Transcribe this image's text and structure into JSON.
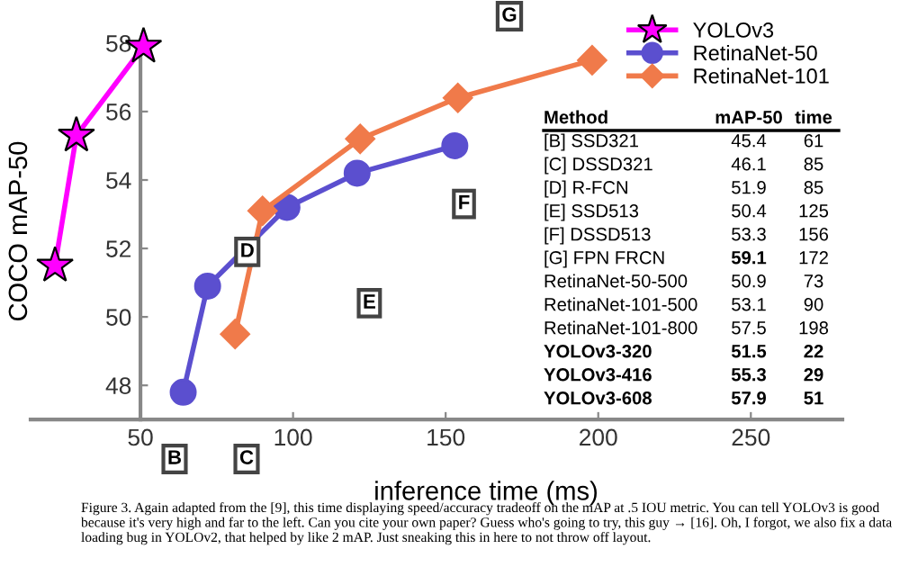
{
  "chart_data": {
    "type": "line",
    "xlabel": "inference time (ms)",
    "ylabel": "COCO mAP-50",
    "xlim": [
      14,
      280
    ],
    "ylim": [
      47,
      58
    ],
    "xticks": [
      50,
      100,
      150,
      200,
      250
    ],
    "yticks": [
      48,
      50,
      52,
      54,
      56,
      58
    ],
    "grid": false,
    "legend": "top right",
    "series": [
      {
        "name": "YOLOv3",
        "color": "#ff00ff",
        "marker": "star",
        "x": [
          22,
          29,
          51
        ],
        "values": [
          51.5,
          55.3,
          57.9
        ]
      },
      {
        "name": "RetinaNet-50",
        "color": "#5b4fcf",
        "marker": "circle",
        "x": [
          64,
          72,
          98,
          121,
          153
        ],
        "values": [
          47.8,
          50.9,
          53.2,
          54.2,
          55.0
        ]
      },
      {
        "name": "RetinaNet-101",
        "color": "#f07a4a",
        "marker": "diamond",
        "x": [
          81,
          90,
          122,
          154,
          198
        ],
        "values": [
          49.5,
          53.1,
          55.2,
          56.4,
          57.5
        ]
      }
    ],
    "annotations": [
      "B",
      "C",
      "G",
      {
        "text": "D",
        "x": 85,
        "y": 51.9
      },
      {
        "text": "E",
        "x": 125,
        "y": 50.4
      },
      {
        "text": "F",
        "x": 156,
        "y": 53.3
      },
      "Method\tmAP-50\ttime",
      "[B] SSD321\t45.4\t61",
      "[C] DSSD321\t46.1\t85",
      "[D] R-FCN\t51.9\t85",
      "[E] SSD513\t50.4\t125",
      "[F] DSSD513\t53.3\t156",
      "[G] FPN FRCN\t59.1\t172",
      "RetinaNet-50-500\t50.9\t73",
      "RetinaNet-101-500\t53.1\t90",
      "RetinaNet-101-800\t57.5\t198",
      "YOLOv3-320\t51.5\t22",
      "YOLOv3-416\t55.3\t29",
      "YOLOv3-608\t57.9\t51",
      "Figure 3. Again adapted from the [9], this time displaying speed/accuracy tradeoff on the mAP at .5 IOU metric. You can tell YOLOv3 is good because it's very high and far to the left. Can you cite your own paper? Guess who's going to try, this guy → [16]. Oh, I forgot, we also fix a data loading bug in YOLOv2, that helped by like 2 mAP. Just sneaking this in here to not throw off layout."
    ]
  }
}
